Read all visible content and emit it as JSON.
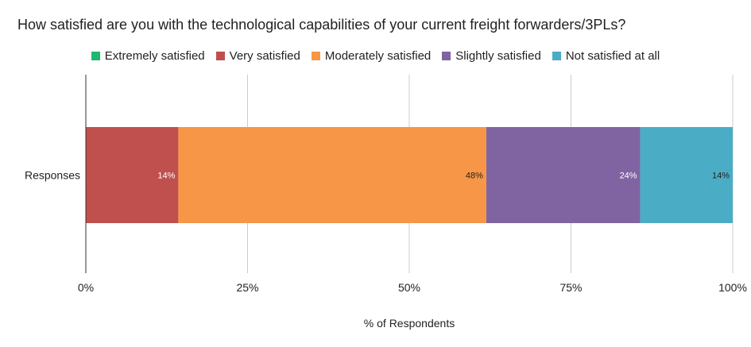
{
  "chart_data": {
    "type": "bar",
    "orientation": "horizontal",
    "stacked": true,
    "title": "How satisfied are you with the technological capabilities of your current freight forwarders/3PLs?",
    "categories": [
      "Responses"
    ],
    "series": [
      {
        "name": "Extremely satisfied",
        "color": "#1db86e",
        "values": [
          0
        ],
        "label": ""
      },
      {
        "name": "Very satisfied",
        "color": "#c0504d",
        "values": [
          14.3
        ],
        "label": "14%",
        "label_color": "#ffffff"
      },
      {
        "name": "Moderately satisfied",
        "color": "#f79646",
        "values": [
          47.6
        ],
        "label": "48%",
        "label_color": "#222222"
      },
      {
        "name": "Slightly satisfied",
        "color": "#8064a2",
        "values": [
          23.8
        ],
        "label": "24%",
        "label_color": "#ffffff"
      },
      {
        "name": "Not satisfied at all",
        "color": "#4bacc6",
        "values": [
          14.3
        ],
        "label": "14%",
        "label_color": "#222222"
      }
    ],
    "xlim": [
      0,
      100
    ],
    "x_ticks": [
      "0%",
      "25%",
      "50%",
      "75%",
      "100%"
    ],
    "xlabel": "% of Respondents",
    "ylabel": "",
    "grid": true,
    "legend_position": "top"
  }
}
